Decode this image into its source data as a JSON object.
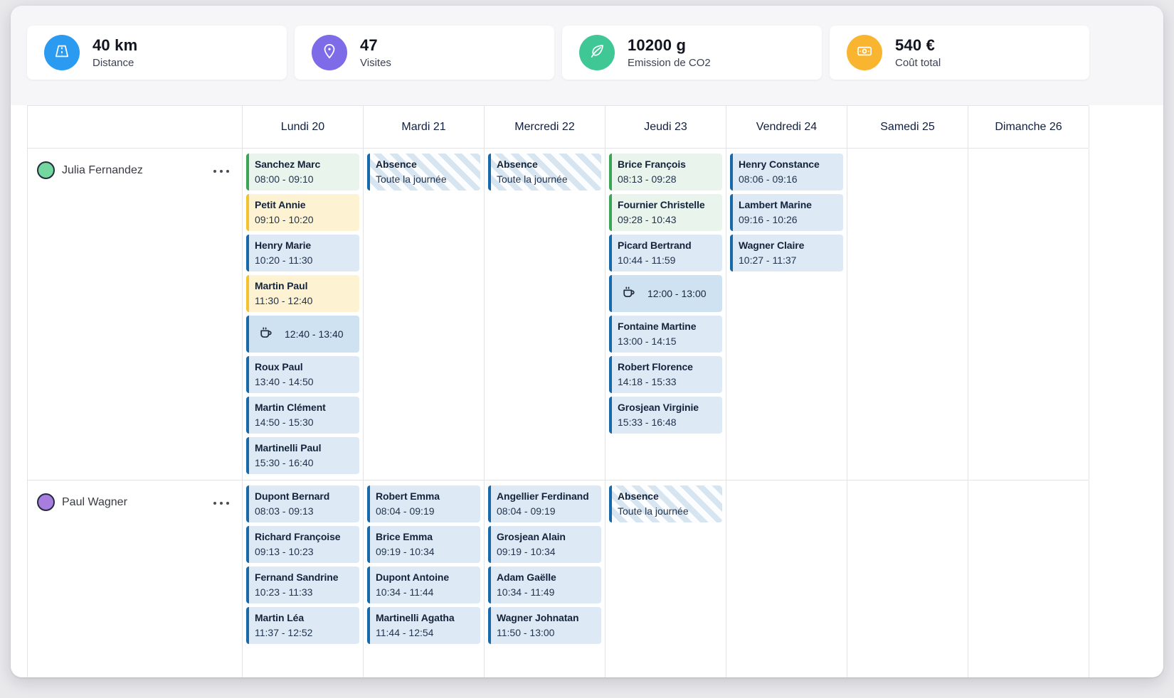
{
  "stats": [
    {
      "value": "40 km",
      "label": "Distance",
      "icon": "road-icon",
      "circle_color": "#2a9bf1"
    },
    {
      "value": "47",
      "label": "Visites",
      "icon": "pin-icon",
      "circle_color": "#7e6be8"
    },
    {
      "value": "10200 g",
      "label": "Emission de CO2",
      "icon": "leaf-icon",
      "circle_color": "#3fc795"
    },
    {
      "value": "540 €",
      "label": "Coût total",
      "icon": "banknote-icon",
      "circle_color": "#f9b52f"
    }
  ],
  "calendar": {
    "days": [
      "Lundi 20",
      "Mardi 21",
      "Mercredi 22",
      "Jeudi 23",
      "Vendredi 24",
      "Samedi 25",
      "Dimanche 26"
    ],
    "absence": {
      "title": "Absence",
      "subtitle": "Toute la journée"
    },
    "colors": {
      "green_border": "#3aa655",
      "green_bg": "#e9f4ec",
      "yellow_border": "#f2c230",
      "yellow_bg": "#fdf3d2",
      "blue_border": "#1769aa",
      "blue_bg": "#ddeaf5",
      "break_bg": "#cfe2f1",
      "absence_stripe": "#d7e5f1"
    },
    "rows": [
      {
        "person": "Julia Fernandez",
        "avatar_color": "#72d8a0",
        "days": [
          [
            {
              "type": "visit",
              "variant": "green",
              "name": "Sanchez Marc",
              "time": "08:00 - 09:10"
            },
            {
              "type": "visit",
              "variant": "yellow",
              "name": "Petit Annie",
              "time": "09:10 - 10:20"
            },
            {
              "type": "visit",
              "variant": "blue",
              "name": "Henry Marie",
              "time": "10:20 - 11:30"
            },
            {
              "type": "visit",
              "variant": "yellow",
              "name": "Martin Paul",
              "time": "11:30 - 12:40"
            },
            {
              "type": "break",
              "time": "12:40 - 13:40"
            },
            {
              "type": "visit",
              "variant": "blue",
              "name": "Roux Paul",
              "time": "13:40 - 14:50"
            },
            {
              "type": "visit",
              "variant": "blue",
              "name": "Martin Clément",
              "time": "14:50 - 15:30"
            },
            {
              "type": "visit",
              "variant": "blue",
              "name": "Martinelli Paul",
              "time": "15:30 - 16:40"
            }
          ],
          [
            {
              "type": "absence"
            }
          ],
          [
            {
              "type": "absence"
            }
          ],
          [
            {
              "type": "visit",
              "variant": "green",
              "name": "Brice François",
              "time": "08:13 - 09:28"
            },
            {
              "type": "visit",
              "variant": "green",
              "name": "Fournier Christelle",
              "time": "09:28 - 10:43"
            },
            {
              "type": "visit",
              "variant": "blue",
              "name": "Picard Bertrand",
              "time": "10:44 - 11:59"
            },
            {
              "type": "break",
              "time": "12:00 - 13:00"
            },
            {
              "type": "visit",
              "variant": "blue",
              "name": "Fontaine Martine",
              "time": "13:00 - 14:15"
            },
            {
              "type": "visit",
              "variant": "blue",
              "name": "Robert Florence",
              "time": "14:18 - 15:33"
            },
            {
              "type": "visit",
              "variant": "blue",
              "name": "Grosjean Virginie",
              "time": "15:33 - 16:48"
            }
          ],
          [
            {
              "type": "visit",
              "variant": "blue",
              "name": "Henry Constance",
              "time": "08:06 - 09:16"
            },
            {
              "type": "visit",
              "variant": "blue",
              "name": "Lambert Marine",
              "time": "09:16 - 10:26"
            },
            {
              "type": "visit",
              "variant": "blue",
              "name": "Wagner Claire",
              "time": "10:27 - 11:37"
            }
          ],
          [],
          []
        ]
      },
      {
        "person": "Paul Wagner",
        "avatar_color": "#a77ddd",
        "days": [
          [
            {
              "type": "visit",
              "variant": "blue",
              "name": "Dupont Bernard",
              "time": "08:03 - 09:13"
            },
            {
              "type": "visit",
              "variant": "blue",
              "name": "Richard Françoise",
              "time": "09:13 - 10:23"
            },
            {
              "type": "visit",
              "variant": "blue",
              "name": "Fernand Sandrine",
              "time": "10:23 - 11:33"
            },
            {
              "type": "visit",
              "variant": "blue",
              "name": "Martin Léa",
              "time": "11:37 - 12:52"
            }
          ],
          [
            {
              "type": "visit",
              "variant": "blue",
              "name": "Robert Emma",
              "time": "08:04 - 09:19"
            },
            {
              "type": "visit",
              "variant": "blue",
              "name": "Brice Emma",
              "time": "09:19 - 10:34"
            },
            {
              "type": "visit",
              "variant": "blue",
              "name": "Dupont Antoine",
              "time": "10:34 - 11:44"
            },
            {
              "type": "visit",
              "variant": "blue",
              "name": "Martinelli Agatha",
              "time": "11:44 - 12:54"
            }
          ],
          [
            {
              "type": "visit",
              "variant": "blue",
              "name": "Angellier Ferdinand",
              "time": "08:04 - 09:19"
            },
            {
              "type": "visit",
              "variant": "blue",
              "name": "Grosjean Alain",
              "time": "09:19 - 10:34"
            },
            {
              "type": "visit",
              "variant": "blue",
              "name": "Adam Gaëlle",
              "time": "10:34 - 11:49"
            },
            {
              "type": "visit",
              "variant": "blue",
              "name": "Wagner Johnatan",
              "time": "11:50 - 13:00"
            }
          ],
          [
            {
              "type": "absence"
            }
          ],
          [],
          [],
          []
        ]
      }
    ]
  }
}
